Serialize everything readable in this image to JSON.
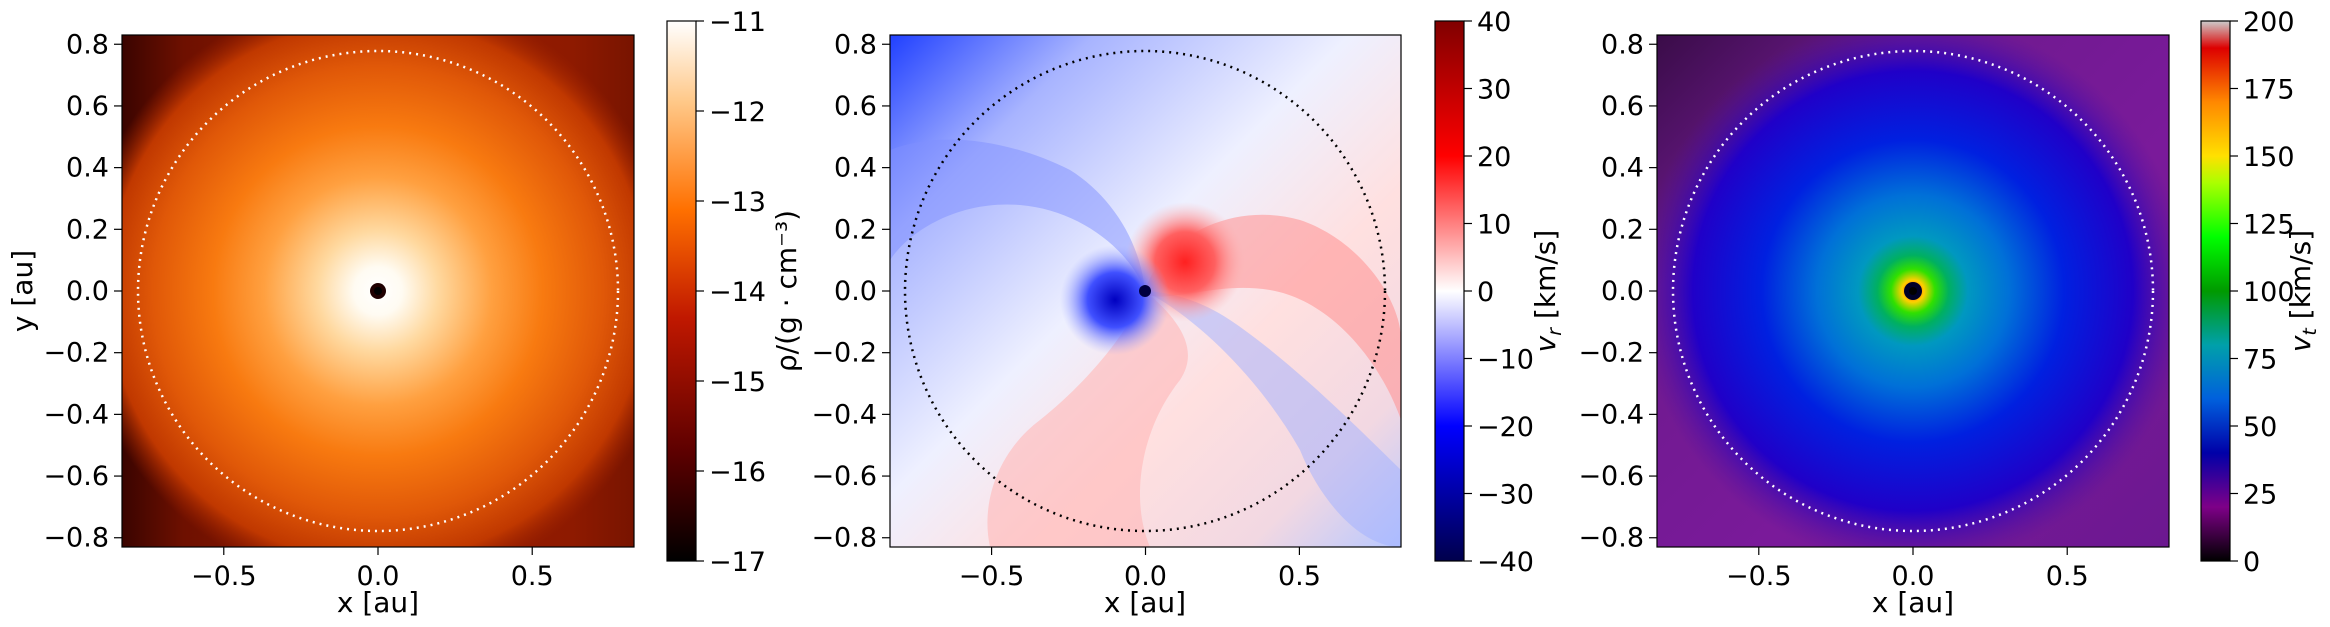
{
  "chart_data": [
    {
      "type": "heatmap",
      "title": "",
      "quantity": "density",
      "xlabel": "x [au]",
      "ylabel": "y [au]",
      "xlim": [
        -0.83,
        0.83
      ],
      "ylim": [
        -0.83,
        0.83
      ],
      "x_ticks": [
        "−0.5",
        "0.0",
        "0.5"
      ],
      "y_ticks": [
        "0.8",
        "0.6",
        "0.4",
        "0.2",
        "0.0",
        "−0.2",
        "−0.4",
        "−0.6",
        "−0.8"
      ],
      "circle_radius_au": 0.78,
      "circle_style": "white dotted",
      "colorbar": {
        "label": "ρ/(g · cm⁻³)",
        "range": [
          -17,
          -11
        ],
        "ticks": [
          "−11",
          "−12",
          "−13",
          "−14",
          "−15",
          "−16",
          "−17"
        ],
        "colormap": "gist_heat"
      }
    },
    {
      "type": "heatmap",
      "title": "",
      "quantity": "radial velocity",
      "xlabel": "x [au]",
      "ylabel": "",
      "xlim": [
        -0.83,
        0.83
      ],
      "ylim": [
        -0.83,
        0.83
      ],
      "x_ticks": [
        "−0.5",
        "0.0",
        "0.5"
      ],
      "y_ticks": [
        "0.8",
        "0.6",
        "0.4",
        "0.2",
        "0.0",
        "−0.2",
        "−0.4",
        "−0.6",
        "−0.8"
      ],
      "circle_radius_au": 0.78,
      "circle_style": "black dotted",
      "colorbar": {
        "label": "vr [km/s]",
        "range": [
          -40,
          40
        ],
        "ticks": [
          "40",
          "30",
          "20",
          "10",
          "0",
          "−10",
          "−20",
          "−30",
          "−40"
        ],
        "colormap": "seismic"
      }
    },
    {
      "type": "heatmap",
      "title": "",
      "quantity": "tangential velocity",
      "xlabel": "x [au]",
      "ylabel": "",
      "xlim": [
        -0.83,
        0.83
      ],
      "ylim": [
        -0.83,
        0.83
      ],
      "x_ticks": [
        "−0.5",
        "0.0",
        "0.5"
      ],
      "y_ticks": [
        "0.8",
        "0.6",
        "0.4",
        "0.2",
        "0.0",
        "−0.2",
        "−0.4",
        "−0.6",
        "−0.8"
      ],
      "circle_radius_au": 0.78,
      "circle_style": "white dotted",
      "colorbar": {
        "label": "vt [km/s]",
        "range": [
          0,
          200
        ],
        "ticks": [
          "200",
          "175",
          "150",
          "125",
          "100",
          "75",
          "50",
          "25",
          "0"
        ],
        "colormap": "nipy_spectral"
      }
    }
  ]
}
